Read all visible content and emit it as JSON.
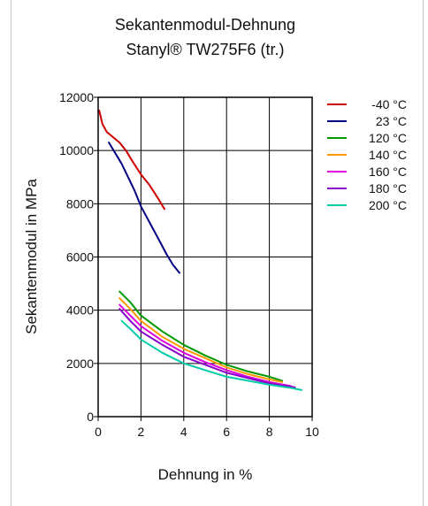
{
  "chart_data": {
    "type": "line",
    "title": "Sekantenmodul-Dehnung",
    "subtitle": "Stanyl® TW275F6 (tr.)",
    "xlabel": "Dehnung in %",
    "ylabel": "Sekantenmodul in MPa",
    "xlim": [
      0,
      10
    ],
    "ylim": [
      0,
      12000
    ],
    "xticks": [
      "0",
      "2",
      "4",
      "6",
      "8",
      "10"
    ],
    "yticks": [
      "0",
      "2000",
      "4000",
      "6000",
      "8000",
      "10000",
      "12000"
    ],
    "grid": true,
    "legend_position": "right",
    "series": [
      {
        "name": "-40 °C",
        "color": "#cc0000",
        "x": [
          0.05,
          0.2,
          0.4,
          0.7,
          1.0,
          1.3,
          1.6,
          2.0,
          2.4,
          2.8,
          3.1
        ],
        "y": [
          11500,
          11000,
          10700,
          10500,
          10300,
          10000,
          9600,
          9100,
          8700,
          8200,
          7800
        ]
      },
      {
        "name": "23 °C",
        "color": "#000080",
        "x": [
          0.5,
          0.8,
          1.1,
          1.4,
          1.7,
          2.0,
          2.4,
          2.8,
          3.2,
          3.5,
          3.8
        ],
        "y": [
          10300,
          9900,
          9500,
          9000,
          8500,
          7900,
          7300,
          6700,
          6100,
          5700,
          5400
        ]
      },
      {
        "name": "120 °C",
        "color": "#009900",
        "x": [
          1.0,
          1.5,
          2.0,
          3.0,
          4.0,
          5.0,
          6.0,
          7.0,
          8.0,
          8.6
        ],
        "y": [
          4700,
          4300,
          3800,
          3200,
          2700,
          2300,
          1950,
          1700,
          1500,
          1350
        ]
      },
      {
        "name": "140 °C",
        "color": "#ff9900",
        "x": [
          1.0,
          1.5,
          2.0,
          3.0,
          4.0,
          5.0,
          6.0,
          7.0,
          8.0,
          8.6
        ],
        "y": [
          4450,
          4050,
          3600,
          3000,
          2550,
          2200,
          1850,
          1600,
          1400,
          1300
        ]
      },
      {
        "name": "160 °C",
        "color": "#dd00dd",
        "x": [
          1.0,
          1.5,
          2.0,
          3.0,
          4.0,
          5.0,
          6.0,
          7.0,
          8.0,
          9.0
        ],
        "y": [
          4200,
          3800,
          3400,
          2850,
          2400,
          2050,
          1750,
          1500,
          1300,
          1150
        ]
      },
      {
        "name": "180 °C",
        "color": "#8800cc",
        "x": [
          1.0,
          1.5,
          2.0,
          3.0,
          4.0,
          5.0,
          6.0,
          7.0,
          8.0,
          9.2
        ],
        "y": [
          4050,
          3600,
          3200,
          2700,
          2250,
          1950,
          1650,
          1450,
          1250,
          1100
        ]
      },
      {
        "name": "200 °C",
        "color": "#00ccaa",
        "x": [
          1.1,
          1.5,
          2.0,
          3.0,
          4.0,
          5.0,
          6.0,
          7.0,
          8.0,
          9.0,
          9.5
        ],
        "y": [
          3600,
          3300,
          2900,
          2400,
          2000,
          1750,
          1500,
          1350,
          1200,
          1080,
          1000
        ]
      }
    ]
  }
}
